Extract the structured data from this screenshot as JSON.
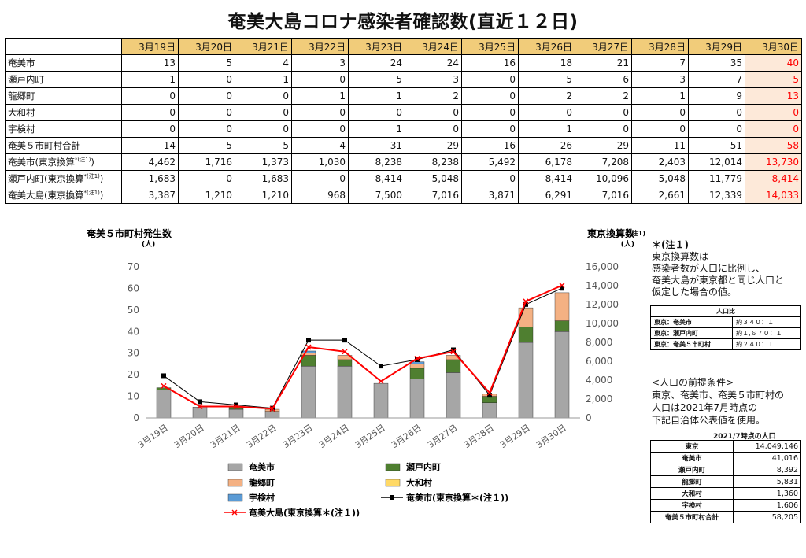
{
  "page": {
    "title": "奄美大島コロナ感染者確認数(直近１２日)"
  },
  "table": {
    "dates": [
      "3月19日",
      "3月20日",
      "3月21日",
      "3月22日",
      "3月23日",
      "3月24日",
      "3月25日",
      "3月26日",
      "3月27日",
      "3月28日",
      "3月29日",
      "3月30日"
    ],
    "rows": [
      {
        "label": "奄美市",
        "values": [
          "13",
          "5",
          "4",
          "3",
          "24",
          "24",
          "16",
          "18",
          "21",
          "7",
          "35",
          "40"
        ]
      },
      {
        "label": "瀬戸内町",
        "values": [
          "1",
          "0",
          "1",
          "0",
          "5",
          "3",
          "0",
          "5",
          "6",
          "3",
          "7",
          "5"
        ]
      },
      {
        "label": "龍郷町",
        "values": [
          "0",
          "0",
          "0",
          "1",
          "1",
          "2",
          "0",
          "2",
          "2",
          "1",
          "9",
          "13"
        ]
      },
      {
        "label": "大和村",
        "values": [
          "0",
          "0",
          "0",
          "0",
          "0",
          "0",
          "0",
          "0",
          "0",
          "0",
          "0",
          "0"
        ]
      },
      {
        "label": "宇検村",
        "values": [
          "0",
          "0",
          "0",
          "0",
          "1",
          "0",
          "0",
          "1",
          "0",
          "0",
          "0",
          "0"
        ]
      },
      {
        "label": "奄美５市町村合計",
        "values": [
          "14",
          "5",
          "5",
          "4",
          "31",
          "29",
          "16",
          "26",
          "29",
          "11",
          "51",
          "58"
        ]
      },
      {
        "label": "奄美市(東京換算",
        "sup": "*(注1)",
        "close": ")",
        "values": [
          "4,462",
          "1,716",
          "1,373",
          "1,030",
          "8,238",
          "8,238",
          "5,492",
          "6,178",
          "7,208",
          "2,403",
          "12,014",
          "13,730"
        ]
      },
      {
        "label": "瀬戸内町(東京換算",
        "sup": "*(注1)",
        "close": ")",
        "values": [
          "1,683",
          "0",
          "1,683",
          "0",
          "8,414",
          "5,048",
          "0",
          "8,414",
          "10,096",
          "5,048",
          "11,779",
          "8,414"
        ]
      },
      {
        "label": "奄美大島(東京換算",
        "sup": "*(注1)",
        "close": ")",
        "values": [
          "3,387",
          "1,210",
          "1,210",
          "968",
          "7,500",
          "7,016",
          "3,871",
          "6,291",
          "7,016",
          "2,661",
          "12,339",
          "14,033"
        ]
      }
    ]
  },
  "chart_data": {
    "type": "bar",
    "stacked": true,
    "title": "奄美５市町村発生数",
    "left_axis": {
      "label": "奄美５市町村発生数",
      "unit": "(人)",
      "ylim": [
        0,
        70
      ],
      "ticks": [
        "0",
        "10",
        "20",
        "30",
        "40",
        "50",
        "60",
        "70"
      ]
    },
    "right_axis": {
      "label": "東京換算数",
      "suffix": "*(注1)",
      "unit": "(人)",
      "ylim": [
        0,
        16000
      ],
      "ticks": [
        "0",
        "2,000",
        "4,000",
        "6,000",
        "8,000",
        "10,000",
        "12,000",
        "14,000",
        "16,000"
      ]
    },
    "categories": [
      "3月19日",
      "3月20日",
      "3月21日",
      "3月22日",
      "3月23日",
      "3月24日",
      "3月25日",
      "3月26日",
      "3月27日",
      "3月28日",
      "3月29日",
      "3月30日"
    ],
    "series": [
      {
        "name": "奄美市",
        "kind": "bar",
        "color": "#a6a6a6",
        "values": [
          13,
          5,
          4,
          3,
          24,
          24,
          16,
          18,
          21,
          7,
          35,
          40
        ]
      },
      {
        "name": "瀬戸内町",
        "kind": "bar",
        "color": "#4f7f30",
        "values": [
          1,
          0,
          1,
          0,
          5,
          3,
          0,
          5,
          6,
          3,
          7,
          5
        ]
      },
      {
        "name": "龍郷町",
        "kind": "bar",
        "color": "#f4b183",
        "values": [
          0,
          0,
          0,
          1,
          1,
          2,
          0,
          2,
          2,
          1,
          9,
          13
        ]
      },
      {
        "name": "大和村",
        "kind": "bar",
        "color": "#ffd966",
        "values": [
          0,
          0,
          0,
          0,
          0,
          0,
          0,
          0,
          0,
          0,
          0,
          0
        ]
      },
      {
        "name": "宇検村",
        "kind": "bar",
        "color": "#5b9bd5",
        "values": [
          0,
          0,
          0,
          0,
          1,
          0,
          0,
          1,
          0,
          0,
          0,
          0
        ]
      },
      {
        "name": "奄美市(東京換算＊(注１))",
        "kind": "line",
        "axis": "right",
        "color": "#000000",
        "marker": "square",
        "values": [
          4462,
          1716,
          1373,
          1030,
          8238,
          8238,
          5492,
          6178,
          7208,
          2403,
          12014,
          13730
        ]
      },
      {
        "name": "奄美大島(東京換算＊(注１))",
        "kind": "line",
        "axis": "right",
        "color": "#ff0000",
        "marker": "x",
        "values": [
          3387,
          1210,
          1210,
          968,
          7500,
          7016,
          3871,
          6291,
          7016,
          2661,
          12339,
          14033
        ]
      }
    ],
    "grid": false,
    "legend_position": "bottom"
  },
  "note": {
    "head": "＊(注１)",
    "lines": [
      "東京換算数は",
      "感染者数が人口に比例し、",
      "奄美大島が東京都と同じ人口と",
      "仮定した場合の値。"
    ]
  },
  "ratio_table": {
    "caption": "人口比",
    "rows": [
      {
        "label": "東京：奄美市",
        "value": "約３４０：１"
      },
      {
        "label": "東京：瀬戸内町",
        "value": "約１,６７０：１"
      },
      {
        "label": "東京：奄美５市町村",
        "value": "約２４０：１"
      }
    ]
  },
  "premise": {
    "title": "<人口の前提条件>",
    "lines": [
      "東京、奄美市、奄美５市町村の",
      "人口は2021年7月時点の",
      "下記自治体公表値を使用。"
    ]
  },
  "population_table": {
    "caption": "2021/7時点の人口",
    "rows": [
      {
        "label": "東京",
        "value": "14,049,146"
      },
      {
        "label": "奄美市",
        "value": "41,016"
      },
      {
        "label": "瀬戸内町",
        "value": "8,392"
      },
      {
        "label": "龍郷町",
        "value": "5,831"
      },
      {
        "label": "大和村",
        "value": "1,360"
      },
      {
        "label": "宇検村",
        "value": "1,606"
      },
      {
        "label": "奄美５市町村合計",
        "value": "58,205"
      }
    ]
  }
}
